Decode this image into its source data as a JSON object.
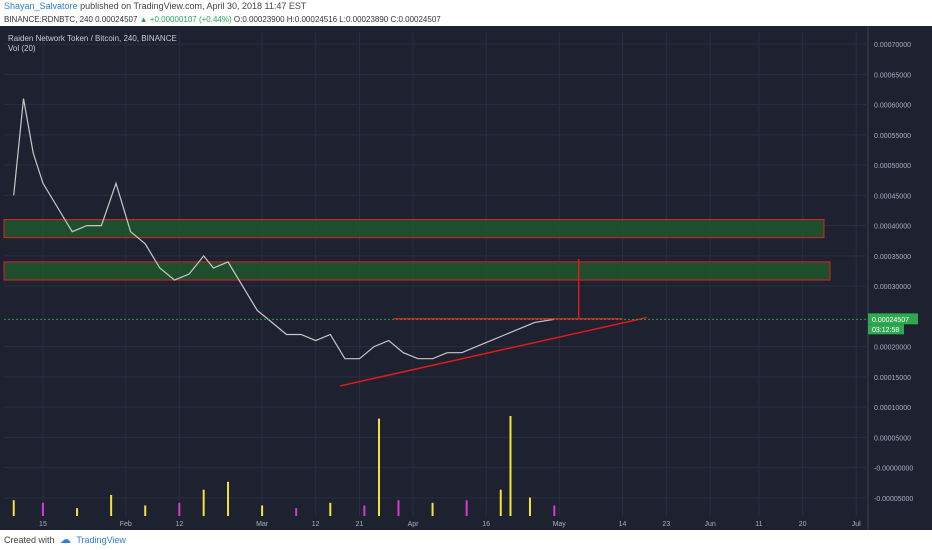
{
  "header": {
    "author": "Shayan_Salvatore",
    "published": "published on TradingView.com, April 30, 2018 11:47 EST",
    "symbol": "BINANCE:RDNBTC, 240",
    "price": "0.00024507",
    "change": "▲ +0.00000107 (+0.44%)",
    "ohlc": "O:0.00023900 H:0.00024516 L:0.00023890 C:0.00024507"
  },
  "legend": {
    "title": "Raiden Network Token / Bitcoin, 240, BINANCE",
    "volume": "Vol (20)"
  },
  "footer": {
    "created_with": "Created with",
    "brand": "TradingView"
  },
  "colors": {
    "background": "#1d2130",
    "grid": "#2a2f40",
    "line": "#c8c8c8",
    "volume_yellow": "#f5e33b",
    "volume_magenta": "#d63ad6",
    "zone_fill": "#1f5e2e",
    "zone_border": "#e02020",
    "trend": "#e21a1a",
    "price_tag": "#2fa84f"
  },
  "chart_data": {
    "type": "line",
    "title": "Raiden Network Token / Bitcoin, 240, BINANCE",
    "x_tick_labels": [
      "15",
      "Feb",
      "12",
      "Mar",
      "12",
      "21",
      "Apr",
      "16",
      "May",
      "14",
      "23",
      "Jun",
      "11",
      "20",
      "Jul"
    ],
    "y_tick_labels": [
      "0.00070000",
      "0.00065000",
      "0.00060000",
      "0.00055000",
      "0.00050000",
      "0.00045000",
      "0.00040000",
      "0.00035000",
      "0.00030000",
      "0.00020000",
      "0.00015000",
      "0.00010000",
      "0.00005000",
      "-0.00000000",
      "-0.00005000"
    ],
    "ylim": [
      -8e-05,
      0.00072
    ],
    "last_price": "0.00024507",
    "countdown": "03:12:58",
    "series": [
      {
        "x": [
          "2018-01-09",
          "2018-01-11",
          "2018-01-13",
          "2018-01-15",
          "2018-01-18",
          "2018-01-21",
          "2018-01-24",
          "2018-01-27",
          "2018-01-30",
          "2018-02-02",
          "2018-02-05",
          "2018-02-08",
          "2018-02-11",
          "2018-02-14",
          "2018-02-17",
          "2018-02-19",
          "2018-02-22",
          "2018-02-25",
          "2018-02-28",
          "2018-03-03",
          "2018-03-06",
          "2018-03-09",
          "2018-03-12",
          "2018-03-15",
          "2018-03-18",
          "2018-03-21",
          "2018-03-24",
          "2018-03-27",
          "2018-03-30",
          "2018-04-02",
          "2018-04-05",
          "2018-04-08",
          "2018-04-11",
          "2018-04-14",
          "2018-04-17",
          "2018-04-20",
          "2018-04-23",
          "2018-04-26",
          "2018-04-30"
        ],
        "values": [
          0.00045,
          0.00061,
          0.00052,
          0.00047,
          0.00043,
          0.00039,
          0.0004,
          0.0004,
          0.00047,
          0.00039,
          0.00037,
          0.00033,
          0.00031,
          0.00032,
          0.00035,
          0.00033,
          0.00034,
          0.0003,
          0.00026,
          0.00024,
          0.00022,
          0.00022,
          0.00021,
          0.00022,
          0.00018,
          0.00018,
          0.0002,
          0.00021,
          0.00019,
          0.00018,
          0.00018,
          0.00019,
          0.00019,
          0.0002,
          0.00021,
          0.00022,
          0.00023,
          0.00024,
          0.00024507
        ]
      }
    ],
    "volume": {
      "x": [
        "2018-01-09",
        "2018-01-15",
        "2018-01-22",
        "2018-01-29",
        "2018-02-05",
        "2018-02-12",
        "2018-02-17",
        "2018-02-22",
        "2018-03-01",
        "2018-03-08",
        "2018-03-15",
        "2018-03-22",
        "2018-03-25",
        "2018-03-29",
        "2018-04-05",
        "2018-04-12",
        "2018-04-19",
        "2018-04-21",
        "2018-04-25",
        "2018-04-30"
      ],
      "values": [
        6e-06,
        5e-06,
        3e-06,
        8e-06,
        4e-06,
        5e-06,
        1e-05,
        1.3e-05,
        4e-06,
        3e-06,
        5e-06,
        4e-06,
        3.7e-05,
        6e-06,
        5e-06,
        6e-06,
        1e-05,
        3.8e-05,
        7e-06,
        4e-06
      ]
    },
    "zones": [
      {
        "y0": 0.00038,
        "y1": 0.00041
      },
      {
        "y0": 0.00031,
        "y1": 0.00034
      }
    ],
    "annotations": [
      {
        "type": "resistance-line",
        "y": 0.000246
      },
      {
        "type": "rising-trendline",
        "from": 0.000135,
        "to": 0.000248
      },
      {
        "type": "target-line",
        "from": 0.000246,
        "to": 0.000345
      }
    ],
    "grid": true
  }
}
